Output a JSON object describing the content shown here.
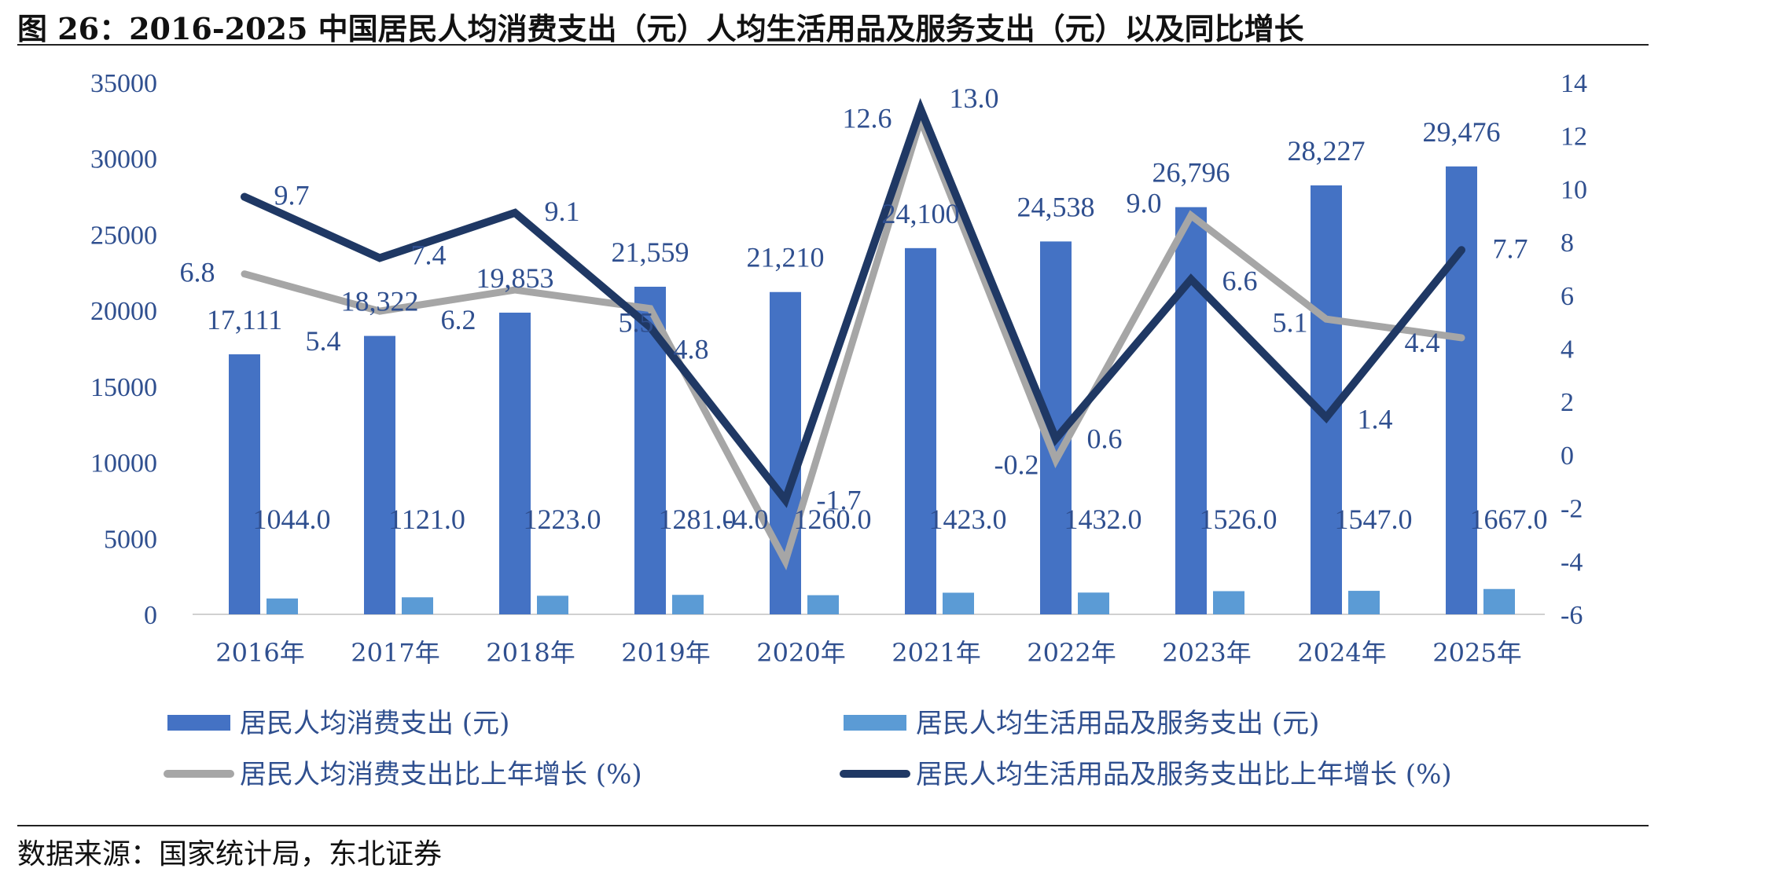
{
  "page": {
    "title": "图 26：2016-2025 中国居民人均消费支出（元）人均生活用品及服务支出（元）以及同比增长",
    "source": "数据来源：国家统计局，东北证券"
  },
  "chart_data": {
    "type": "bar",
    "categories": [
      "2016年",
      "2017年",
      "2018年",
      "2019年",
      "2020年",
      "2021年",
      "2022年",
      "2023年",
      "2024年",
      "2025年"
    ],
    "y_left": {
      "ticks": [
        "0",
        "5000",
        "10000",
        "15000",
        "20000",
        "25000",
        "30000",
        "35000"
      ],
      "ylim": [
        0,
        35000
      ]
    },
    "y_right": {
      "ticks": [
        "-6",
        "-4",
        "-2",
        "0",
        "2",
        "4",
        "6",
        "8",
        "10",
        "12",
        "14"
      ],
      "ylim": [
        -6,
        14
      ]
    },
    "grid": false,
    "legend_position": "bottom",
    "series": [
      {
        "name": "居民人均消费支出 (元)",
        "type": "bar",
        "axis": "left",
        "color": "#4472C4",
        "values": [
          17111,
          18322,
          19853,
          21559,
          21210,
          24100,
          24538,
          26796,
          28227,
          29476
        ],
        "labels": [
          "17,111",
          "18,322",
          "19,853",
          "21,559",
          "21,210",
          "24,100",
          "24,538",
          "26,796",
          "28,227",
          "29,476"
        ]
      },
      {
        "name": "居民人均生活用品及服务支出 (元)",
        "type": "bar",
        "axis": "left",
        "color": "#5B9BD5",
        "values": [
          1044,
          1121,
          1223,
          1281,
          1260,
          1423,
          1432,
          1526,
          1547,
          1667
        ],
        "labels": [
          "1044.0",
          "1121.0",
          "1223.0",
          "1281.0",
          "1260.0",
          "1423.0",
          "1432.0",
          "1526.0",
          "1547.0",
          "1667.0"
        ]
      },
      {
        "name": "居民人均消费支出比上年增长 (%)",
        "type": "line",
        "axis": "right",
        "color": "#A6A6A6",
        "values": [
          6.8,
          5.4,
          6.2,
          5.5,
          -4.0,
          12.6,
          -0.2,
          9.0,
          5.1,
          4.4
        ],
        "labels": [
          "6.8",
          "5.4",
          "6.2",
          "5.5",
          "-4.0",
          "12.6",
          "-0.2",
          "9.0",
          "5.1",
          "4.4"
        ]
      },
      {
        "name": "居民人均生活用品及服务支出比上年增长 (%)",
        "type": "line",
        "axis": "right",
        "color": "#1F3864",
        "values": [
          9.7,
          7.4,
          9.1,
          4.8,
          -1.7,
          13.0,
          0.6,
          6.6,
          1.4,
          7.7
        ],
        "labels": [
          "9.7",
          "7.4",
          "9.1",
          "4.8",
          "-1.7",
          "13.0",
          "0.6",
          "6.6",
          "1.4",
          "7.7"
        ]
      }
    ]
  }
}
